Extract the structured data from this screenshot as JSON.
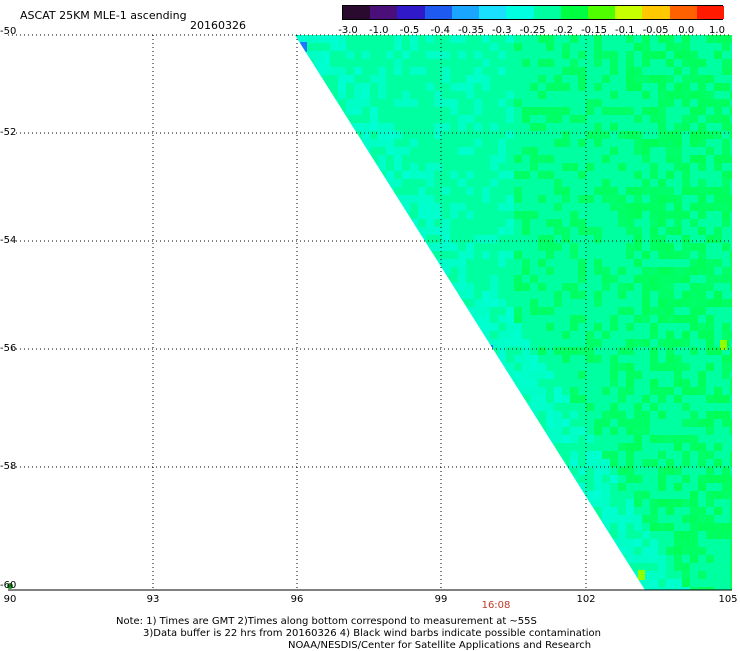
{
  "header": {
    "title": "ASCAT 25KM MLE-1 ascending",
    "date": "20160326"
  },
  "colorbar": {
    "labels": [
      "-3.0",
      "-1.0",
      "-0.5",
      "-0.4",
      "-0.35",
      "-0.3",
      "-0.25",
      "-0.2",
      "-0.15",
      "-0.1",
      "-0.05",
      "0.0",
      "1.0"
    ],
    "colors": [
      "#2a0a2e",
      "#4b0f7a",
      "#2f19c8",
      "#1e5af0",
      "#1aa5ff",
      "#19e0ff",
      "#00ffe0",
      "#00ffa0",
      "#00ff40",
      "#50ff00",
      "#c8ff00",
      "#ffc800",
      "#ff6000",
      "#ff1a00"
    ]
  },
  "axes": {
    "y_labels": [
      "-50",
      "-52",
      "-54",
      "-56",
      "-58",
      "-60"
    ],
    "x_labels": [
      "90",
      "93",
      "96",
      "99",
      "102",
      "105"
    ],
    "time_label": "16:08"
  },
  "notes": [
    "Note: 1) Times are GMT 2)Times along bottom correspond to measurement at ~55S",
    "3)Data buffer is 22 hrs from 20160326 4) Black wind barbs indicate possible contamination",
    "NOAA/NESDIS/Center for Satellite Applications and Research"
  ],
  "colors": {
    "cyan": "#00ffe0",
    "aqua_green": "#00ffa0",
    "green": "#00ff40",
    "blue_spot": "#1e78ff",
    "lime": "#90ff00"
  }
}
